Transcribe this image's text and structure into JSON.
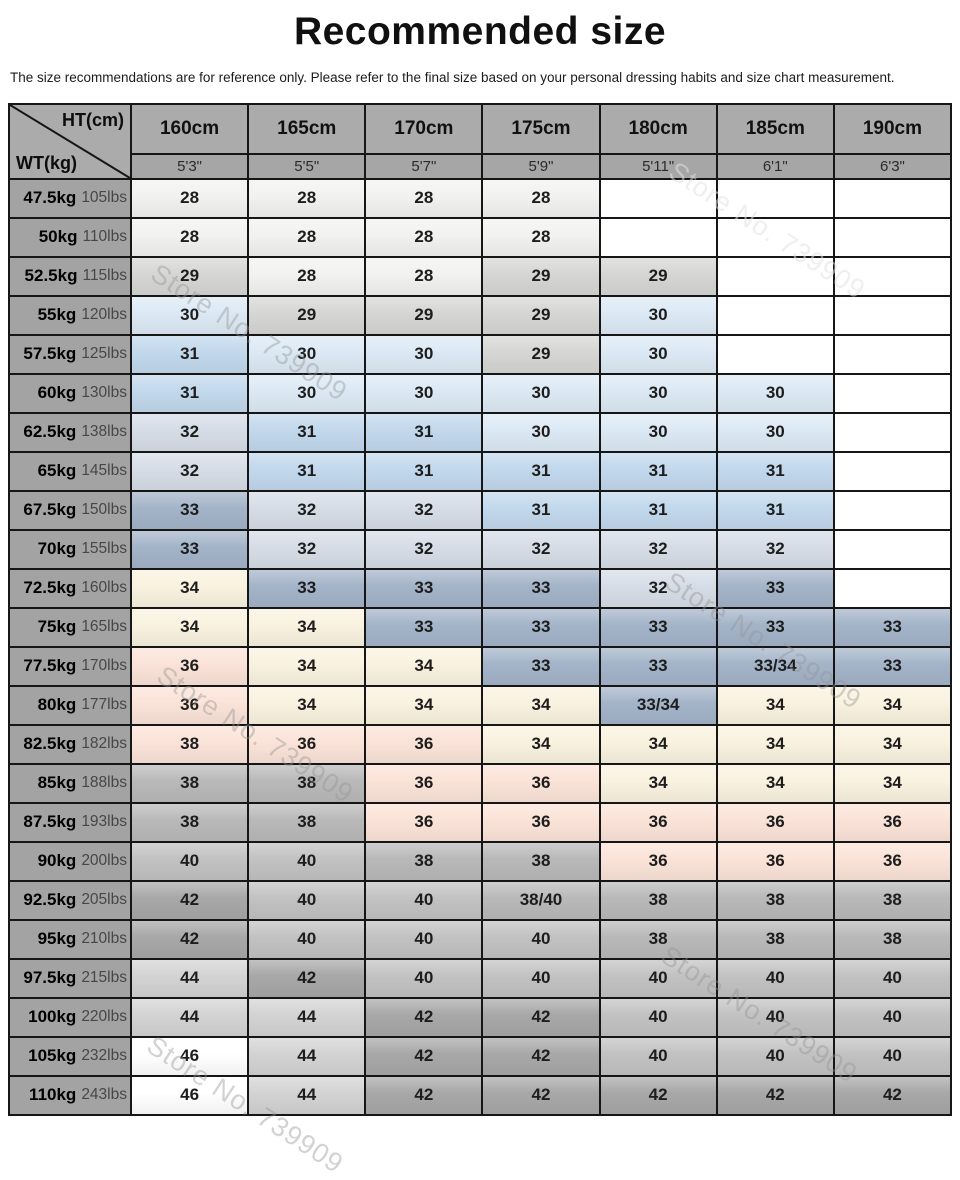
{
  "title": "Recommended size",
  "subtitle": "The size recommendations are for reference only. Please refer to the final size based on your personal dressing habits and size chart measurement.",
  "watermark": {
    "text": "Store No. 739909"
  },
  "table": {
    "corner": {
      "top": "HT(cm)",
      "bottom": "WT(kg)"
    },
    "columns": [
      {
        "cm": "160cm",
        "ft": "5'3\""
      },
      {
        "cm": "165cm",
        "ft": "5'5\""
      },
      {
        "cm": "170cm",
        "ft": "5'7\""
      },
      {
        "cm": "175cm",
        "ft": "5'9\""
      },
      {
        "cm": "180cm",
        "ft": "5'11\""
      },
      {
        "cm": "185cm",
        "ft": "6'1\""
      },
      {
        "cm": "190cm",
        "ft": "6'3\""
      }
    ],
    "rows": [
      {
        "kg": "47.5kg",
        "lbs": "105lbs",
        "cells": [
          "28",
          "28",
          "28",
          "28",
          "",
          "",
          ""
        ]
      },
      {
        "kg": "50kg",
        "lbs": "110lbs",
        "cells": [
          "28",
          "28",
          "28",
          "28",
          "",
          "",
          ""
        ]
      },
      {
        "kg": "52.5kg",
        "lbs": "115lbs",
        "cells": [
          "29",
          "28",
          "28",
          "29",
          "29",
          "",
          ""
        ]
      },
      {
        "kg": "55kg",
        "lbs": "120lbs",
        "cells": [
          "30",
          "29",
          "29",
          "29",
          "30",
          "",
          ""
        ]
      },
      {
        "kg": "57.5kg",
        "lbs": "125lbs",
        "cells": [
          "31",
          "30",
          "30",
          "29",
          "30",
          "",
          ""
        ]
      },
      {
        "kg": "60kg",
        "lbs": "130lbs",
        "cells": [
          "31",
          "30",
          "30",
          "30",
          "30",
          "30",
          ""
        ]
      },
      {
        "kg": "62.5kg",
        "lbs": "138lbs",
        "cells": [
          "32",
          "31",
          "31",
          "30",
          "30",
          "30",
          ""
        ]
      },
      {
        "kg": "65kg",
        "lbs": "145lbs",
        "cells": [
          "32",
          "31",
          "31",
          "31",
          "31",
          "31",
          ""
        ]
      },
      {
        "kg": "67.5kg",
        "lbs": "150lbs",
        "cells": [
          "33",
          "32",
          "32",
          "31",
          "31",
          "31",
          ""
        ]
      },
      {
        "kg": "70kg",
        "lbs": "155lbs",
        "cells": [
          "33",
          "32",
          "32",
          "32",
          "32",
          "32",
          ""
        ]
      },
      {
        "kg": "72.5kg",
        "lbs": "160lbs",
        "cells": [
          "34",
          "33",
          "33",
          "33",
          "32",
          "33",
          ""
        ]
      },
      {
        "kg": "75kg",
        "lbs": "165lbs",
        "cells": [
          "34",
          "34",
          "33",
          "33",
          "33",
          "33",
          "33"
        ]
      },
      {
        "kg": "77.5kg",
        "lbs": "170lbs",
        "cells": [
          "36",
          "34",
          "34",
          "33",
          "33",
          "33/34",
          "33"
        ]
      },
      {
        "kg": "80kg",
        "lbs": "177lbs",
        "cells": [
          "36",
          "34",
          "34",
          "34",
          "33/34",
          "34",
          "34"
        ]
      },
      {
        "kg": "82.5kg",
        "lbs": "182lbs",
        "cells": [
          "38",
          "36",
          "36",
          "34",
          "34",
          "34",
          "34"
        ]
      },
      {
        "kg": "85kg",
        "lbs": "188lbs",
        "cells": [
          "38",
          "38",
          "36",
          "36",
          "34",
          "34",
          "34"
        ]
      },
      {
        "kg": "87.5kg",
        "lbs": "193lbs",
        "cells": [
          "38",
          "38",
          "36",
          "36",
          "36",
          "36",
          "36"
        ]
      },
      {
        "kg": "90kg",
        "lbs": "200lbs",
        "cells": [
          "40",
          "40",
          "38",
          "38",
          "36",
          "36",
          "36"
        ]
      },
      {
        "kg": "92.5kg",
        "lbs": "205lbs",
        "cells": [
          "42",
          "40",
          "40",
          "38/40",
          "38",
          "38",
          "38"
        ]
      },
      {
        "kg": "95kg",
        "lbs": "210lbs",
        "cells": [
          "42",
          "40",
          "40",
          "40",
          "38",
          "38",
          "38"
        ]
      },
      {
        "kg": "97.5kg",
        "lbs": "215lbs",
        "cells": [
          "44",
          "42",
          "40",
          "40",
          "40",
          "40",
          "40"
        ]
      },
      {
        "kg": "100kg",
        "lbs": "220lbs",
        "cells": [
          "44",
          "44",
          "42",
          "42",
          "40",
          "40",
          "40"
        ]
      },
      {
        "kg": "105kg",
        "lbs": "232lbs",
        "cells": [
          "46",
          "44",
          "42",
          "42",
          "40",
          "40",
          "40"
        ]
      },
      {
        "kg": "110kg",
        "lbs": "243lbs",
        "cells": [
          "46",
          "44",
          "42",
          "42",
          "42",
          "42",
          "42"
        ]
      }
    ],
    "size_colors": {
      "28": "#f2f2f0",
      "29": "#d6d6d4",
      "30": "#dce9f4",
      "31": "#c2d8ec",
      "32": "#d6dde7",
      "33": "#a4b4c9",
      "33/34": "#a4b4c9",
      "34": "#f9f2df",
      "36": "#fbe3d8",
      "38": "#b9b9b9",
      "38/40": "#b9b9b9",
      "40": "#c2c2c2",
      "42": "#a8a8a8",
      "44": "#d3d3d3",
      "46": "#ffffff",
      "": "#ffffff"
    },
    "cell_color_overrides": {
      "14-0": "#fbe3d8"
    }
  }
}
